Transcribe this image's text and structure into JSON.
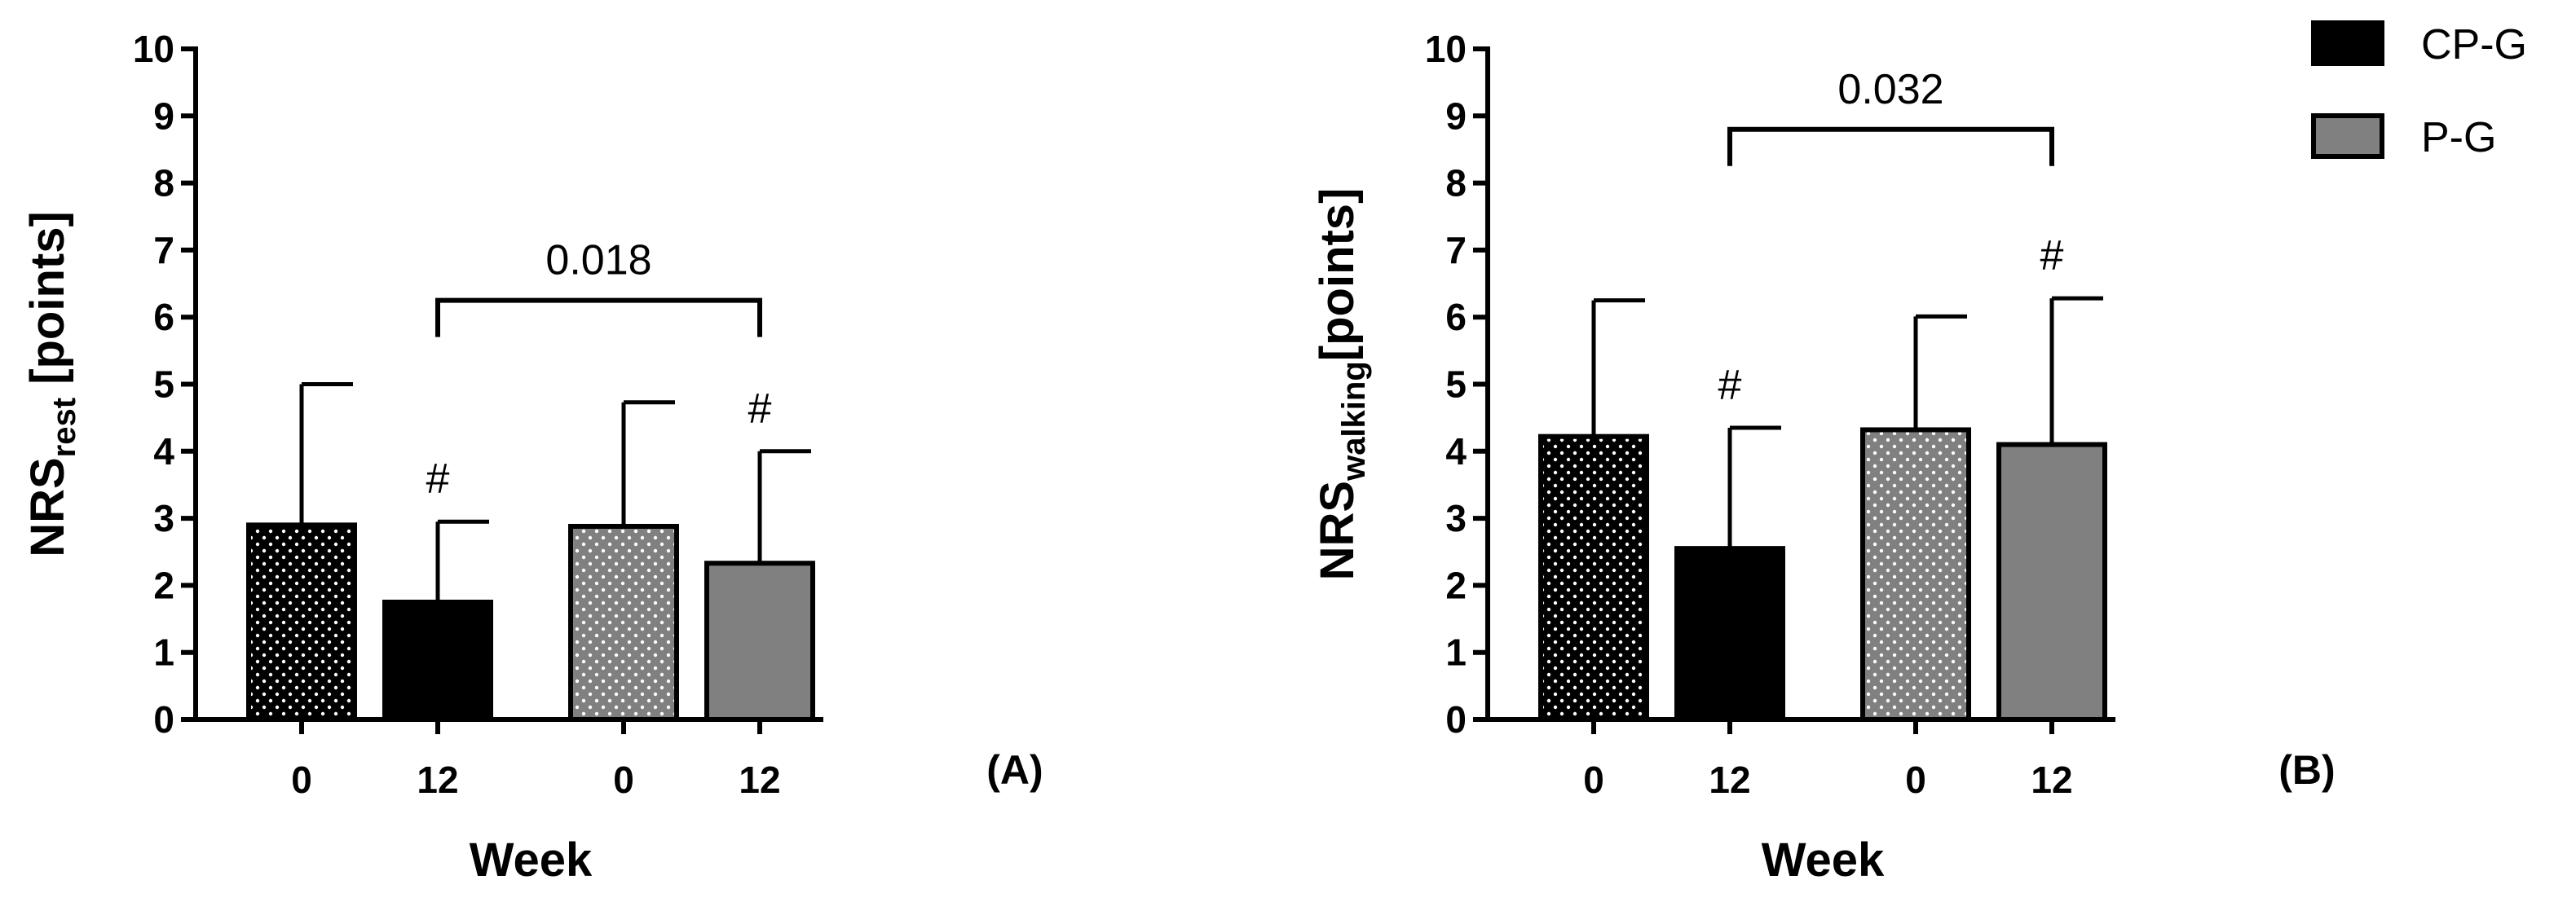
{
  "colors": {
    "cp_g": "#000000",
    "p_g": "#808080",
    "dots": "#ffffff",
    "axis": "#000000"
  },
  "legend": {
    "items": [
      {
        "label": "CP-G",
        "color": "#000000"
      },
      {
        "label": "P-G",
        "color": "#808080"
      }
    ]
  },
  "chart_data": [
    {
      "type": "bar",
      "panel_label": "(A)",
      "ylabel_main": "NRS",
      "ylabel_sub": "rest",
      "ylabel_suffix": " [points]",
      "xlabel": "Week",
      "ylim": [
        0,
        10
      ],
      "yticks": [
        "0",
        "1",
        "2",
        "3",
        "4",
        "5",
        "6",
        "7",
        "8",
        "9",
        "10"
      ],
      "categories": [
        "0",
        "12",
        "0",
        "12"
      ],
      "bars": [
        {
          "series": "CP-G",
          "week": "0",
          "value": 2.9,
          "error": 2.1,
          "pattern": "dotted"
        },
        {
          "series": "CP-G",
          "week": "12",
          "value": 1.75,
          "error": 1.2,
          "pattern": "solid",
          "mark": "#"
        },
        {
          "series": "P-G",
          "week": "0",
          "value": 2.88,
          "error": 1.85,
          "pattern": "dotted"
        },
        {
          "series": "P-G",
          "week": "12",
          "value": 2.33,
          "error": 1.67,
          "pattern": "solid",
          "mark": "#"
        }
      ],
      "bracket": {
        "from_bar": 1,
        "to_bar": 3,
        "y": 6.25,
        "label": "0.018"
      }
    },
    {
      "type": "bar",
      "panel_label": "(B)",
      "ylabel_main": "NRS",
      "ylabel_sub": "walking",
      "ylabel_suffix": "[points]",
      "xlabel": "Week",
      "ylim": [
        0,
        10
      ],
      "yticks": [
        "0",
        "1",
        "2",
        "3",
        "4",
        "5",
        "6",
        "7",
        "8",
        "9",
        "10"
      ],
      "categories": [
        "0",
        "12",
        "0",
        "12"
      ],
      "bars": [
        {
          "series": "CP-G",
          "week": "0",
          "value": 4.22,
          "error": 2.03,
          "pattern": "dotted"
        },
        {
          "series": "CP-G",
          "week": "12",
          "value": 2.55,
          "error": 1.8,
          "pattern": "solid",
          "mark": "#"
        },
        {
          "series": "P-G",
          "week": "0",
          "value": 4.32,
          "error": 1.69,
          "pattern": "dotted"
        },
        {
          "series": "P-G",
          "week": "12",
          "value": 4.1,
          "error": 2.18,
          "pattern": "solid",
          "mark": "#"
        }
      ],
      "bracket": {
        "from_bar": 1,
        "to_bar": 3,
        "y": 8.8,
        "label": "0.032"
      }
    }
  ]
}
